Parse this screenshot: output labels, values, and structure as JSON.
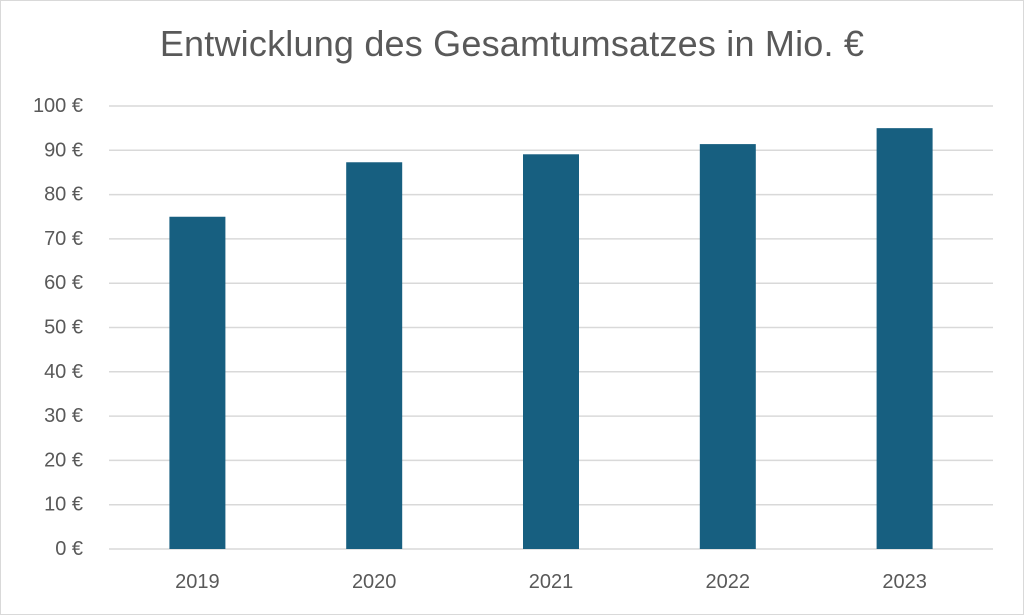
{
  "chart_data": {
    "type": "bar",
    "title": "Entwicklung des Gesamtumsatzes in Mio. €",
    "xlabel": "",
    "ylabel": "",
    "categories": [
      "2019",
      "2020",
      "2021",
      "2022",
      "2023"
    ],
    "values": [
      75,
      87.3,
      89.1,
      91.4,
      95
    ],
    "ylim": [
      0,
      100
    ],
    "yticks": [
      0,
      10,
      20,
      30,
      40,
      50,
      60,
      70,
      80,
      90,
      100
    ],
    "ytick_labels": [
      "0 €",
      "10 €",
      "20 €",
      "30 €",
      "40 €",
      "50 €",
      "60 €",
      "70 €",
      "80 €",
      "90 €",
      "100 €"
    ],
    "grid": true,
    "legend": "none",
    "colors": {
      "bar": "#175f80",
      "grid": "#d9d9d9",
      "text": "#595959"
    }
  }
}
